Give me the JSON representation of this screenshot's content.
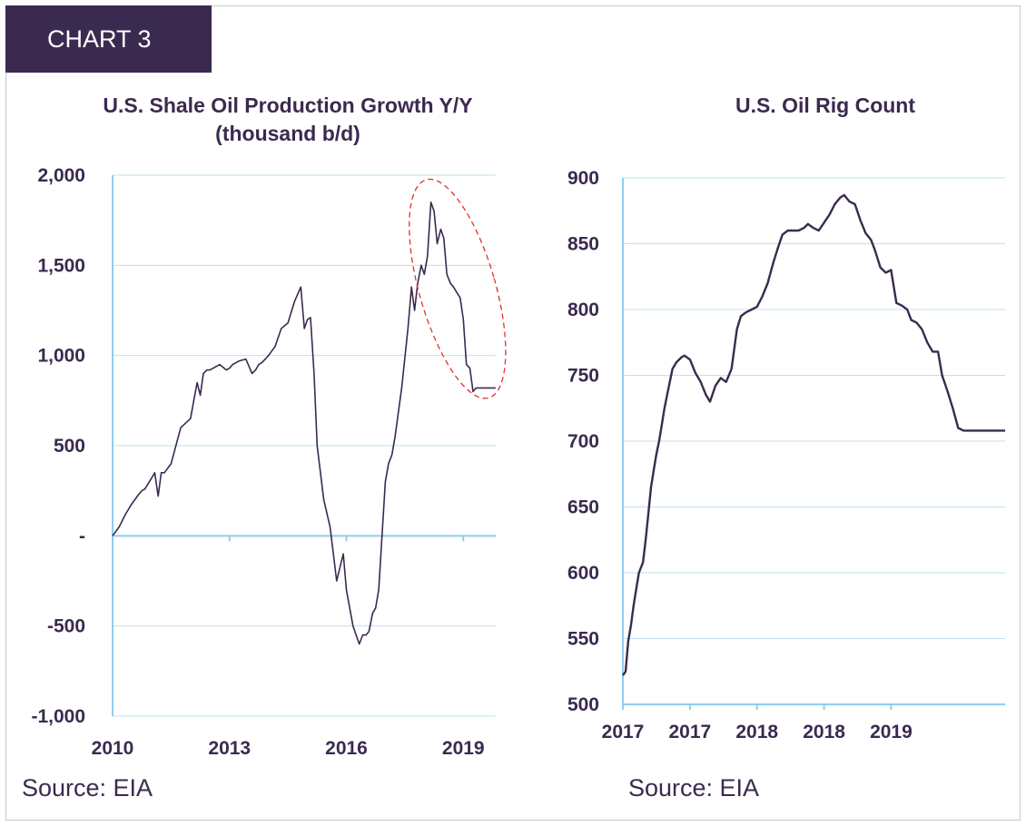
{
  "badge": "CHART 3",
  "colors": {
    "line": "#3b2a4f",
    "grid": "#bfe0f2",
    "axis": "#8fcdee",
    "highlight": "#e03030"
  },
  "chart_data": [
    {
      "type": "line",
      "title": "U.S. Shale Oil Production Growth Y/Y",
      "subtitle": "(thousand b/d)",
      "ylim": [
        -1000,
        2000
      ],
      "y_ticks": [
        2000,
        1500,
        1000,
        500,
        0,
        -500,
        -1000
      ],
      "y_tick_labels": [
        "2,000",
        "1,500",
        "1,000",
        "500",
        "-",
        "-500",
        "-1,000"
      ],
      "x_range": [
        2010.0,
        2019.833
      ],
      "x_ticks": [
        2010,
        2013,
        2016,
        2019
      ],
      "x_tick_labels": [
        "2010",
        "2013",
        "2016",
        "2019"
      ],
      "grid": true,
      "annotation": "red dashed ellipse highlighting 2018-2019 peak",
      "series": [
        {
          "x": [
            2010.0,
            2010.17,
            2010.33,
            2010.5,
            2010.67,
            2010.75,
            2010.83,
            2011.0,
            2011.08,
            2011.17,
            2011.25,
            2011.33,
            2011.5,
            2011.75,
            2012.0,
            2012.17,
            2012.25,
            2012.33,
            2012.42,
            2012.5,
            2012.75,
            2012.92,
            2013.0,
            2013.08,
            2013.17,
            2013.25,
            2013.42,
            2013.58,
            2013.67,
            2013.75,
            2013.83,
            2013.92,
            2014.0,
            2014.17,
            2014.25,
            2014.33,
            2014.5,
            2014.67,
            2014.83,
            2014.92,
            2015.0,
            2015.08,
            2015.17,
            2015.25,
            2015.42,
            2015.58,
            2015.75,
            2015.92,
            2016.0,
            2016.17,
            2016.25,
            2016.33,
            2016.42,
            2016.5,
            2016.58,
            2016.67,
            2016.75,
            2016.83,
            2017.0,
            2017.08,
            2017.17,
            2017.25,
            2017.42,
            2017.58,
            2017.67,
            2017.75,
            2017.83,
            2017.92,
            2018.0,
            2018.08,
            2018.17,
            2018.25,
            2018.33,
            2018.42,
            2018.5,
            2018.58,
            2018.67,
            2018.75,
            2018.83,
            2018.92,
            2019.0,
            2019.08,
            2019.17,
            2019.25,
            2019.33,
            2019.42,
            2019.5,
            2019.58,
            2019.75,
            2019.83
          ],
          "values": [
            0,
            50,
            120,
            180,
            230,
            250,
            260,
            320,
            350,
            220,
            350,
            350,
            400,
            600,
            650,
            850,
            780,
            900,
            920,
            920,
            950,
            920,
            930,
            950,
            960,
            970,
            980,
            900,
            920,
            950,
            960,
            980,
            1000,
            1050,
            1100,
            1150,
            1180,
            1300,
            1380,
            1150,
            1200,
            1210,
            900,
            500,
            200,
            50,
            -250,
            -100,
            -300,
            -500,
            -550,
            -600,
            -550,
            -550,
            -530,
            -430,
            -400,
            -300,
            300,
            400,
            450,
            550,
            820,
            1150,
            1380,
            1250,
            1400,
            1500,
            1450,
            1550,
            1850,
            1800,
            1620,
            1700,
            1650,
            1450,
            1400,
            1380,
            1350,
            1320,
            1200,
            950,
            930,
            800,
            820,
            820,
            820,
            820,
            820,
            820
          ]
        }
      ]
    },
    {
      "type": "line",
      "title": "U.S. Oil Rig Count",
      "ylim": [
        500,
        900
      ],
      "y_ticks": [
        900,
        850,
        800,
        750,
        700,
        650,
        600,
        550,
        500
      ],
      "y_tick_labels": [
        "900",
        "850",
        "800",
        "750",
        "700",
        "650",
        "600",
        "550",
        "500"
      ],
      "x_range": [
        2017.0,
        2019.85
      ],
      "x_ticks": [
        2017.0,
        2017.5,
        2018.0,
        2018.5,
        2019.0
      ],
      "x_tick_labels": [
        "2017",
        "2017",
        "2018",
        "2018",
        "2019"
      ],
      "grid": true,
      "series": [
        {
          "x": [
            2017.0,
            2017.02,
            2017.04,
            2017.06,
            2017.08,
            2017.1,
            2017.12,
            2017.15,
            2017.17,
            2017.19,
            2017.21,
            2017.23,
            2017.25,
            2017.27,
            2017.29,
            2017.31,
            2017.33,
            2017.35,
            2017.37,
            2017.4,
            2017.42,
            2017.44,
            2017.46,
            2017.5,
            2017.54,
            2017.58,
            2017.62,
            2017.65,
            2017.69,
            2017.73,
            2017.77,
            2017.81,
            2017.85,
            2017.88,
            2017.92,
            2017.96,
            2018.0,
            2018.04,
            2018.08,
            2018.12,
            2018.15,
            2018.19,
            2018.23,
            2018.27,
            2018.31,
            2018.35,
            2018.38,
            2018.42,
            2018.46,
            2018.5,
            2018.54,
            2018.58,
            2018.62,
            2018.65,
            2018.69,
            2018.73,
            2018.77,
            2018.81,
            2018.85,
            2018.88,
            2018.92,
            2018.96,
            2019.0,
            2019.04,
            2019.08,
            2019.12,
            2019.15,
            2019.19,
            2019.23,
            2019.27,
            2019.31,
            2019.35,
            2019.38,
            2019.42,
            2019.46,
            2019.5,
            2019.54,
            2019.58,
            2019.62,
            2019.65,
            2019.69,
            2019.73,
            2019.77,
            2019.81,
            2019.85
          ],
          "values": [
            522,
            525,
            548,
            560,
            575,
            588,
            600,
            608,
            625,
            645,
            665,
            678,
            690,
            700,
            712,
            725,
            735,
            745,
            755,
            760,
            762,
            764,
            765,
            762,
            752,
            745,
            735,
            730,
            742,
            748,
            745,
            755,
            785,
            795,
            798,
            800,
            802,
            810,
            820,
            835,
            845,
            857,
            860,
            860,
            860,
            862,
            865,
            862,
            860,
            866,
            872,
            880,
            885,
            887,
            882,
            880,
            868,
            858,
            853,
            845,
            832,
            828,
            830,
            805,
            803,
            800,
            792,
            790,
            785,
            775,
            768,
            768,
            750,
            738,
            725,
            710,
            708,
            708,
            708,
            708,
            708,
            708,
            708,
            708,
            708
          ]
        }
      ]
    }
  ],
  "sources": [
    "Source: EIA",
    "Source: EIA"
  ]
}
